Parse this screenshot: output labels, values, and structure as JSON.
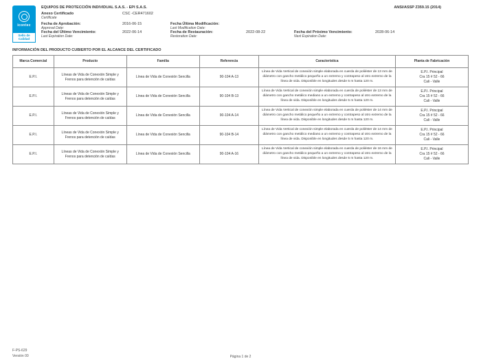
{
  "header": {
    "company": "EQUIPOS DE PROTECCIÓN INDIVIDUAL S.A.S. - EPI S.A.S.",
    "standard": "ANSI/ASSP Z359.15 (2014)",
    "logo_text": "icontec",
    "seal_text": "Sello de Calidad",
    "annex_label": "Anexo Certificado",
    "annex_sub": "Certificate",
    "annex_val": "CSC -CER471602",
    "approval_label": "Fecha de Aprobación:",
    "approval_sub": "Approval Date:",
    "approval_val": "2016-06-15",
    "lastmod_label": "Fecha Última Modificación:",
    "lastmod_sub": "Last Modification Date:",
    "lastmod_val": "",
    "lastexp_label": "Fecha del Último Vencimiento:",
    "lastexp_sub": "Last Expiration Date:",
    "lastexp_val": "2022-06-14",
    "restore_label": "Fecha de Restauración:",
    "restore_sub": "Restoration Date:",
    "restore_val": "2022-08-22",
    "nextexp_label": "Fecha del Próximo Vencimiento:",
    "nextexp_sub": "Next Expiration Date:",
    "nextexp_val": "2028-06-14"
  },
  "section_title": "INFORMACIÓN DEL PRODUCTO CUBIERTO POR EL ALCANCE DEL CERTIFICADO",
  "table": {
    "headers": {
      "marca": "Marca Comercial",
      "producto": "Producto",
      "familia": "Familia",
      "referencia": "Referencia",
      "caracteristica": "Característica",
      "planta": "Planta de Fabricación"
    },
    "rows": [
      {
        "marca": "E.P.I.",
        "producto": "Líneas de Vida de Conexión Simple y Frenos para detención de caídas",
        "familia": "Línea de Vida de Conexión Sencilla",
        "referencia": "90-104 A-13",
        "caracteristica": "Línea de Vida Vertical de conexión simple elaborada en cuerda de poliéster de 13 mm de diámetro con gancho metálico pequeño a un extremo y contrapeso al otro extremo de la línea de vida. Disponible en longitudes desde 5 m hasta 120 m.",
        "planta": "E.P.I. Principal\nCra 15 # 52 - 66\nCali - Valle"
      },
      {
        "marca": "E.P.I.",
        "producto": "Líneas de Vida de Conexión Simple y Frenos para detención de caídas",
        "familia": "Línea de Vida de Conexión Sencilla",
        "referencia": "90-104 B-13",
        "caracteristica": "Línea de Vida Vertical de conexión simple elaborada en cuerda de poliéster de 13 mm de diámetro con gancho metálico mediano a un extremo y contrapeso al otro extremo de la línea de vida. Disponible en longitudes desde 5 m hasta 120 m.",
        "planta": "E.P.I. Principal\nCra 15 # 52 - 66\nCali - Valle"
      },
      {
        "marca": "E.P.I.",
        "producto": "Líneas de Vida de Conexión Simple y Frenos para detención de caídas",
        "familia": "Línea de Vida de Conexión Sencilla",
        "referencia": "90-104 A-14",
        "caracteristica": "Línea de Vida Vertical de conexión simple elaborada en cuerda de poliéster de 14 mm de diámetro con gancho metálico pequeño a un extremo y contrapeso al otro extremo de la línea de vida. Disponible en longitudes desde 5 m hasta 120 m.",
        "planta": "E.P.I. Principal\nCra 15 # 52 - 66\nCali - Valle"
      },
      {
        "marca": "E.P.I.",
        "producto": "Líneas de Vida de Conexión Simple y Frenos para detención de caídas",
        "familia": "Línea de Vida de Conexión Sencilla",
        "referencia": "90-104 B-14",
        "caracteristica": "Línea de Vida Vertical de conexión simple elaborada en cuerda de poliéster de 14 mm de diámetro con gancho metálico mediano a un extremo y contrapeso al otro extremo de la línea de vida. Disponible en longitudes desde 5 m hasta 120 m.",
        "planta": "E.P.I. Principal\nCra 15 # 52 - 66\nCali - Valle"
      },
      {
        "marca": "E.P.I.",
        "producto": "Líneas de Vida de Conexión Simple y Frenos para detención de caídas",
        "familia": "Línea de Vida de Conexión Sencilla",
        "referencia": "90-104 A-16",
        "caracteristica": "Línea de Vida Vertical de conexión simple elaborada en cuerda de poliéster de 16 mm de diámetro con gancho metálico pequeño a un extremo y contrapeso al otro extremo de la línea de vida. Disponible en longitudes desde 5 m hasta 120 m.",
        "planta": "E.P.I. Principal\nCra 15 # 52 - 66\nCali - Valle"
      }
    ]
  },
  "footer": {
    "code": "F-PS-629",
    "version": "Versión 00",
    "page": "Página 1 de 2"
  }
}
